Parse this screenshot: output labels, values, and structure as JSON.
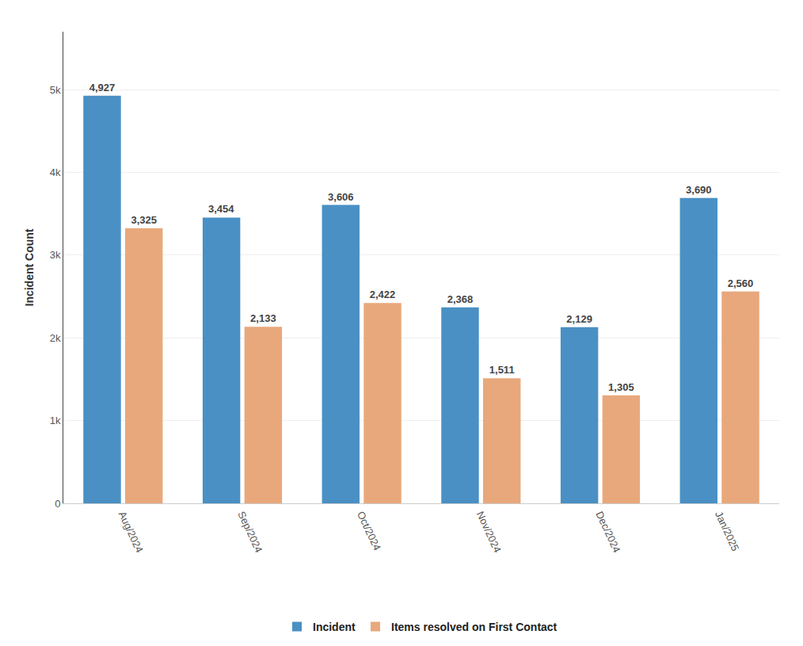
{
  "chart_data": {
    "type": "bar",
    "categories": [
      "Aug/2024",
      "Sep/2024",
      "Oct/2024",
      "Nov/2024",
      "Dec/2024",
      "Jan/2025"
    ],
    "series": [
      {
        "name": "Incident",
        "color": "#4A90C4",
        "values": [
          4927,
          3454,
          3606,
          2368,
          2129,
          3690
        ],
        "value_labels": [
          "4,927",
          "3,454",
          "3,606",
          "2,368",
          "2,129",
          "3,690"
        ]
      },
      {
        "name": "Items resolved on First Contact",
        "color": "#E8A87C",
        "values": [
          3325,
          2133,
          2422,
          1511,
          1305,
          2560
        ],
        "value_labels": [
          "3,325",
          "2,133",
          "2,422",
          "1,511",
          "1,305",
          "2,560"
        ]
      }
    ],
    "ylabel": "Incident Count",
    "ylim": [
      0,
      5700
    ],
    "yticks": [
      0,
      {
        "value": 1000,
        "label": "1k"
      },
      {
        "value": 2000,
        "label": "2k"
      },
      {
        "value": 3000,
        "label": "3k"
      },
      {
        "value": 4000,
        "label": "4k"
      },
      {
        "value": 5000,
        "label": "5k"
      }
    ],
    "grid": true,
    "legend": "bottom",
    "data_labels": true
  }
}
